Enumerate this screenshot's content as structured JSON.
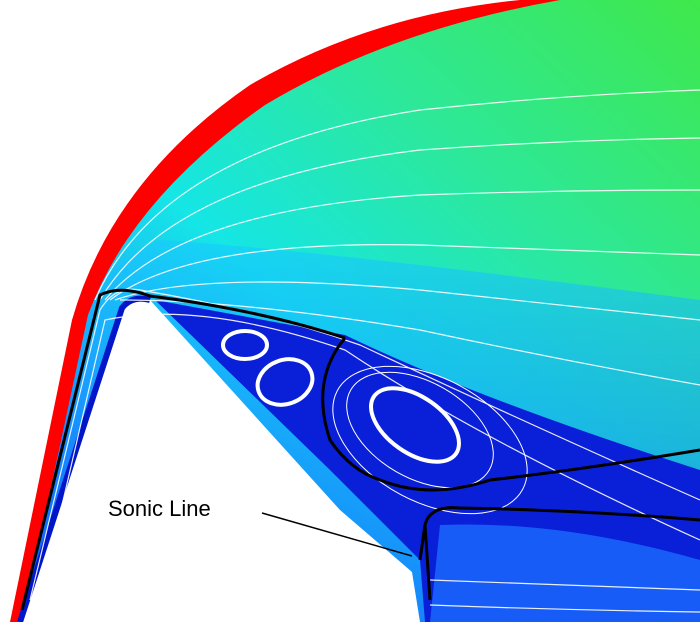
{
  "annotation": "Sonic Line"
}
